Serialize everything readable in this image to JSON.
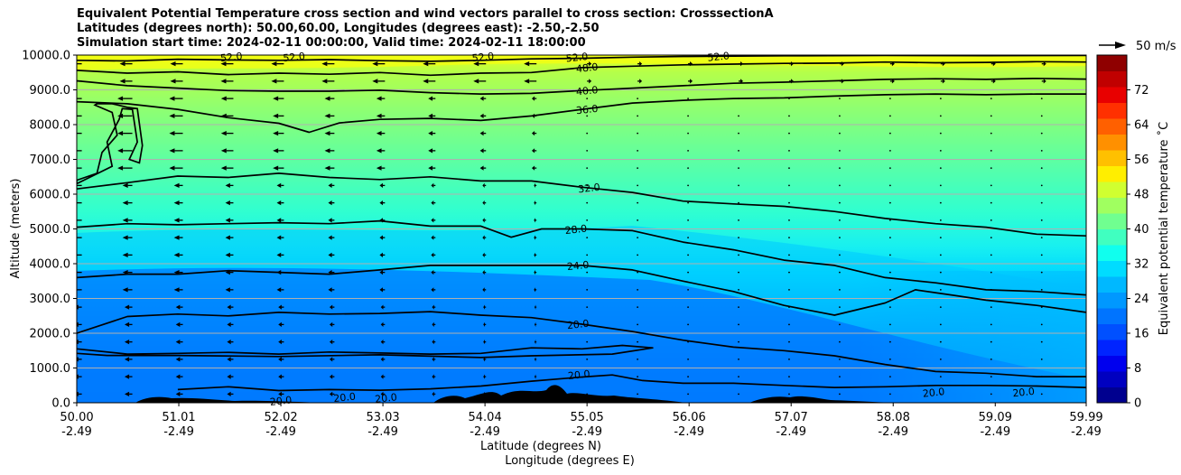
{
  "title_lines": [
    "Equivalent Potential Temperature cross section and wind vectors parallel to cross section: CrosssectionA",
    "Latitudes (degrees north): 50.00,60.00, Longitudes (degrees east): -2.50,-2.50",
    "Simulation start time: 2024-02-11 00:00:00, Valid time: 2024-02-11 18:00:00"
  ],
  "chart_data": {
    "type": "contourf",
    "xlabel_line1": "Latitude (degrees N)",
    "xlabel_line2": "Longitude (degrees E)",
    "ylabel": "Altitude (meters)",
    "x_range": [
      50.0,
      59.99
    ],
    "ylim": [
      0,
      10000
    ],
    "x_ticks": [
      {
        "lat": "50.00",
        "lon": "-2.49",
        "value": 50.0
      },
      {
        "lat": "51.01",
        "lon": "-2.49",
        "value": 51.01
      },
      {
        "lat": "52.02",
        "lon": "-2.49",
        "value": 52.02
      },
      {
        "lat": "53.03",
        "lon": "-2.49",
        "value": 53.03
      },
      {
        "lat": "54.04",
        "lon": "-2.49",
        "value": 54.04
      },
      {
        "lat": "55.05",
        "lon": "-2.49",
        "value": 55.05
      },
      {
        "lat": "56.06",
        "lon": "-2.49",
        "value": 56.06
      },
      {
        "lat": "57.07",
        "lon": "-2.49",
        "value": 57.07
      },
      {
        "lat": "58.08",
        "lon": "-2.49",
        "value": 58.08
      },
      {
        "lat": "59.09",
        "lon": "-2.49",
        "value": 59.09
      },
      {
        "lat": "59.99",
        "lon": "-2.49",
        "value": 59.99
      }
    ],
    "y_ticks": [
      {
        "label": "0.0",
        "value": 0
      },
      {
        "label": "1000.0",
        "value": 1000
      },
      {
        "label": "2000.0",
        "value": 2000
      },
      {
        "label": "3000.0",
        "value": 3000
      },
      {
        "label": "4000.0",
        "value": 4000
      },
      {
        "label": "5000.0",
        "value": 5000
      },
      {
        "label": "6000.0",
        "value": 6000
      },
      {
        "label": "7000.0",
        "value": 7000
      },
      {
        "label": "8000.0",
        "value": 8000
      },
      {
        "label": "9000.0",
        "value": 9000
      },
      {
        "label": "10000.0",
        "value": 10000
      }
    ],
    "colorbar": {
      "label": "Equivalent potential temperature ˚C",
      "range": [
        0,
        80
      ],
      "ticks": [
        0,
        8,
        16,
        24,
        32,
        40,
        48,
        56,
        64,
        72
      ],
      "colors": [
        "#00008f",
        "#0000c0",
        "#0000ee",
        "#0024ff",
        "#0050ff",
        "#0074ff",
        "#0098ff",
        "#00b8ff",
        "#00dcff",
        "#10ffee",
        "#40ffc0",
        "#70ff90",
        "#a0ff60",
        "#d0ff30",
        "#ffee00",
        "#ffc000",
        "#ff9000",
        "#ff6000",
        "#ff3000",
        "#e80000",
        "#c00000",
        "#8f0000"
      ]
    },
    "wind_key": {
      "label": "50 m/s",
      "speed": 50
    },
    "contour_labels": [
      {
        "text": "52.0",
        "lat": 51.53,
        "alt": 9950
      },
      {
        "text": "52.0",
        "lat": 52.15,
        "alt": 9950
      },
      {
        "text": "52.0",
        "lat": 54.02,
        "alt": 9950
      },
      {
        "text": "52.0",
        "lat": 54.95,
        "alt": 9940
      },
      {
        "text": "52.0",
        "lat": 56.35,
        "alt": 9960
      },
      {
        "text": "48.0",
        "lat": 55.05,
        "alt": 9640
      },
      {
        "text": "40.0",
        "lat": 55.05,
        "alt": 8980
      },
      {
        "text": "36.0",
        "lat": 55.05,
        "alt": 8440
      },
      {
        "text": "32.0",
        "lat": 55.07,
        "alt": 6180
      },
      {
        "text": "28.0",
        "lat": 54.94,
        "alt": 4990
      },
      {
        "text": "24.0",
        "lat": 54.96,
        "alt": 3950
      },
      {
        "text": "20.0",
        "lat": 54.96,
        "alt": 2260
      },
      {
        "text": "20.0",
        "lat": 54.97,
        "alt": 810
      },
      {
        "text": "20.0",
        "lat": 58.48,
        "alt": 300
      },
      {
        "text": "20.0",
        "lat": 59.37,
        "alt": 310
      },
      {
        "text": "20.0",
        "lat": 52.02,
        "alt": 60
      },
      {
        "text": "20.0",
        "lat": 52.65,
        "alt": 160
      },
      {
        "text": "20.0",
        "lat": 53.06,
        "alt": 140
      }
    ],
    "contour_levels": [
      {
        "level": 52,
        "points": [
          [
            50.0,
            9850
          ],
          [
            50.5,
            9830
          ],
          [
            51.0,
            9880
          ],
          [
            51.5,
            9860
          ],
          [
            52.0,
            9850
          ],
          [
            52.5,
            9870
          ],
          [
            53.0,
            9840
          ],
          [
            53.5,
            9820
          ],
          [
            54.0,
            9850
          ],
          [
            54.5,
            9890
          ],
          [
            55.0,
            9910
          ],
          [
            55.5,
            9940
          ],
          [
            56.0,
            9960
          ],
          [
            56.5,
            9970
          ],
          [
            57.0,
            9980
          ],
          [
            58.0,
            9990
          ],
          [
            59.0,
            9985
          ],
          [
            59.99,
            9990
          ]
        ]
      },
      {
        "level": 48,
        "points": [
          [
            50.0,
            9560
          ],
          [
            50.5,
            9480
          ],
          [
            51.0,
            9520
          ],
          [
            51.5,
            9440
          ],
          [
            52.0,
            9480
          ],
          [
            52.5,
            9450
          ],
          [
            53.0,
            9500
          ],
          [
            53.5,
            9420
          ],
          [
            54.0,
            9480
          ],
          [
            54.5,
            9500
          ],
          [
            55.0,
            9640
          ],
          [
            55.5,
            9680
          ],
          [
            56.0,
            9720
          ],
          [
            56.5,
            9740
          ],
          [
            57.0,
            9760
          ],
          [
            57.5,
            9770
          ],
          [
            58.0,
            9800
          ],
          [
            58.5,
            9780
          ],
          [
            59.0,
            9790
          ],
          [
            59.5,
            9810
          ],
          [
            59.99,
            9800
          ]
        ]
      },
      {
        "level": 40,
        "points": [
          [
            50.0,
            9260
          ],
          [
            50.5,
            9120
          ],
          [
            51.0,
            9050
          ],
          [
            51.5,
            8980
          ],
          [
            52.0,
            8960
          ],
          [
            52.5,
            8960
          ],
          [
            53.0,
            8990
          ],
          [
            53.5,
            8920
          ],
          [
            54.0,
            8880
          ],
          [
            54.5,
            8900
          ],
          [
            55.0,
            8980
          ],
          [
            55.5,
            9050
          ],
          [
            56.0,
            9120
          ],
          [
            56.5,
            9190
          ],
          [
            57.0,
            9220
          ],
          [
            57.5,
            9260
          ],
          [
            58.0,
            9300
          ],
          [
            58.5,
            9320
          ],
          [
            59.0,
            9300
          ],
          [
            59.5,
            9330
          ],
          [
            59.99,
            9310
          ]
        ]
      },
      {
        "level": 36,
        "points": [
          [
            50.0,
            8660
          ],
          [
            50.5,
            8600
          ],
          [
            51.0,
            8440
          ],
          [
            51.5,
            8200
          ],
          [
            52.0,
            8040
          ],
          [
            52.3,
            7780
          ],
          [
            52.6,
            8050
          ],
          [
            53.0,
            8150
          ],
          [
            53.5,
            8180
          ],
          [
            54.0,
            8120
          ],
          [
            54.5,
            8250
          ],
          [
            55.0,
            8440
          ],
          [
            55.5,
            8620
          ],
          [
            56.0,
            8700
          ],
          [
            56.5,
            8750
          ],
          [
            57.0,
            8770
          ],
          [
            57.5,
            8820
          ],
          [
            58.0,
            8860
          ],
          [
            58.5,
            8880
          ],
          [
            59.0,
            8860
          ],
          [
            59.5,
            8880
          ],
          [
            59.99,
            8880
          ]
        ]
      },
      {
        "level": 32,
        "points": [
          [
            50.0,
            6150
          ],
          [
            50.5,
            6330
          ],
          [
            51.0,
            6520
          ],
          [
            51.5,
            6480
          ],
          [
            52.0,
            6600
          ],
          [
            52.5,
            6480
          ],
          [
            53.0,
            6420
          ],
          [
            53.5,
            6500
          ],
          [
            54.0,
            6380
          ],
          [
            54.5,
            6380
          ],
          [
            55.0,
            6200
          ],
          [
            55.5,
            6050
          ],
          [
            56.0,
            5800
          ],
          [
            56.5,
            5720
          ],
          [
            57.0,
            5650
          ],
          [
            57.5,
            5500
          ],
          [
            58.0,
            5300
          ],
          [
            58.5,
            5150
          ],
          [
            59.0,
            5050
          ],
          [
            59.5,
            4850
          ],
          [
            59.99,
            4800
          ]
        ]
      },
      {
        "level": 28,
        "points": [
          [
            50.0,
            5050
          ],
          [
            50.5,
            5150
          ],
          [
            51.0,
            5120
          ],
          [
            51.5,
            5150
          ],
          [
            52.0,
            5180
          ],
          [
            52.5,
            5150
          ],
          [
            53.0,
            5230
          ],
          [
            53.5,
            5080
          ],
          [
            54.0,
            5080
          ],
          [
            54.3,
            4760
          ],
          [
            54.6,
            5000
          ],
          [
            55.0,
            5000
          ],
          [
            55.5,
            4950
          ],
          [
            56.0,
            4620
          ],
          [
            56.5,
            4400
          ],
          [
            57.0,
            4100
          ],
          [
            57.5,
            3950
          ],
          [
            58.0,
            3600
          ],
          [
            58.5,
            3450
          ],
          [
            59.0,
            3250
          ],
          [
            59.5,
            3200
          ],
          [
            59.99,
            3100
          ]
        ]
      },
      {
        "level": 24,
        "points": [
          [
            50.0,
            3600
          ],
          [
            50.5,
            3700
          ],
          [
            51.0,
            3700
          ],
          [
            51.5,
            3800
          ],
          [
            52.0,
            3750
          ],
          [
            52.5,
            3700
          ],
          [
            53.0,
            3820
          ],
          [
            53.5,
            3950
          ],
          [
            54.0,
            3950
          ],
          [
            54.5,
            3950
          ],
          [
            55.0,
            3950
          ],
          [
            55.5,
            3820
          ],
          [
            56.0,
            3500
          ],
          [
            56.5,
            3200
          ],
          [
            57.0,
            2800
          ],
          [
            57.5,
            2520
          ],
          [
            58.0,
            2870
          ],
          [
            58.3,
            3250
          ],
          [
            58.7,
            3080
          ],
          [
            59.0,
            2950
          ],
          [
            59.5,
            2800
          ],
          [
            59.99,
            2600
          ]
        ]
      },
      {
        "level": 20,
        "points": [
          [
            50.0,
            2000
          ],
          [
            50.5,
            2480
          ],
          [
            51.0,
            2550
          ],
          [
            51.5,
            2500
          ],
          [
            52.0,
            2600
          ],
          [
            52.5,
            2550
          ],
          [
            53.0,
            2570
          ],
          [
            53.5,
            2620
          ],
          [
            54.0,
            2520
          ],
          [
            54.5,
            2450
          ],
          [
            55.0,
            2260
          ],
          [
            55.5,
            2050
          ],
          [
            56.0,
            1800
          ],
          [
            56.5,
            1600
          ],
          [
            57.0,
            1500
          ],
          [
            57.5,
            1350
          ],
          [
            58.0,
            1100
          ],
          [
            58.5,
            900
          ],
          [
            59.0,
            850
          ],
          [
            59.5,
            750
          ],
          [
            59.99,
            750
          ]
        ]
      },
      {
        "level": 20,
        "points": [
          [
            50.0,
            1550
          ],
          [
            50.5,
            1400
          ],
          [
            51.0,
            1420
          ],
          [
            51.5,
            1450
          ],
          [
            52.0,
            1400
          ],
          [
            52.5,
            1460
          ],
          [
            53.0,
            1430
          ],
          [
            53.5,
            1400
          ],
          [
            54.0,
            1420
          ],
          [
            54.5,
            1580
          ],
          [
            55.0,
            1550
          ],
          [
            55.4,
            1650
          ],
          [
            55.7,
            1580
          ],
          [
            55.3,
            1400
          ],
          [
            54.5,
            1350
          ],
          [
            54.0,
            1300
          ],
          [
            53.0,
            1380
          ],
          [
            52.0,
            1330
          ],
          [
            51.0,
            1360
          ],
          [
            50.3,
            1360
          ],
          [
            50.0,
            1420
          ]
        ]
      },
      {
        "level": 20,
        "points": [
          [
            51.0,
            380
          ],
          [
            51.5,
            460
          ],
          [
            52.0,
            350
          ],
          [
            52.5,
            380
          ],
          [
            53.0,
            360
          ],
          [
            53.5,
            400
          ],
          [
            54.0,
            480
          ],
          [
            54.5,
            620
          ],
          [
            55.0,
            740
          ],
          [
            55.3,
            800
          ],
          [
            55.6,
            640
          ],
          [
            56.0,
            560
          ],
          [
            56.5,
            560
          ],
          [
            57.0,
            500
          ],
          [
            57.5,
            440
          ],
          [
            58.0,
            460
          ],
          [
            58.5,
            500
          ],
          [
            59.0,
            500
          ],
          [
            59.5,
            480
          ],
          [
            59.99,
            440
          ]
        ]
      }
    ],
    "left_closed_contour": [
      [
        50.18,
        8560
      ],
      [
        50.35,
        8350
      ],
      [
        50.4,
        7700
      ],
      [
        50.25,
        7200
      ],
      [
        50.2,
        6600
      ],
      [
        50.0,
        6400
      ],
      [
        50.0,
        6300
      ],
      [
        50.35,
        6800
      ],
      [
        50.3,
        7500
      ],
      [
        50.42,
        8150
      ],
      [
        50.45,
        8460
      ],
      [
        50.55,
        8440
      ],
      [
        50.6,
        7500
      ],
      [
        50.52,
        7000
      ],
      [
        50.62,
        6900
      ],
      [
        50.65,
        7400
      ],
      [
        50.6,
        8460
      ],
      [
        50.5,
        8500
      ],
      [
        50.35,
        8600
      ],
      [
        50.2,
        8600
      ]
    ]
  }
}
